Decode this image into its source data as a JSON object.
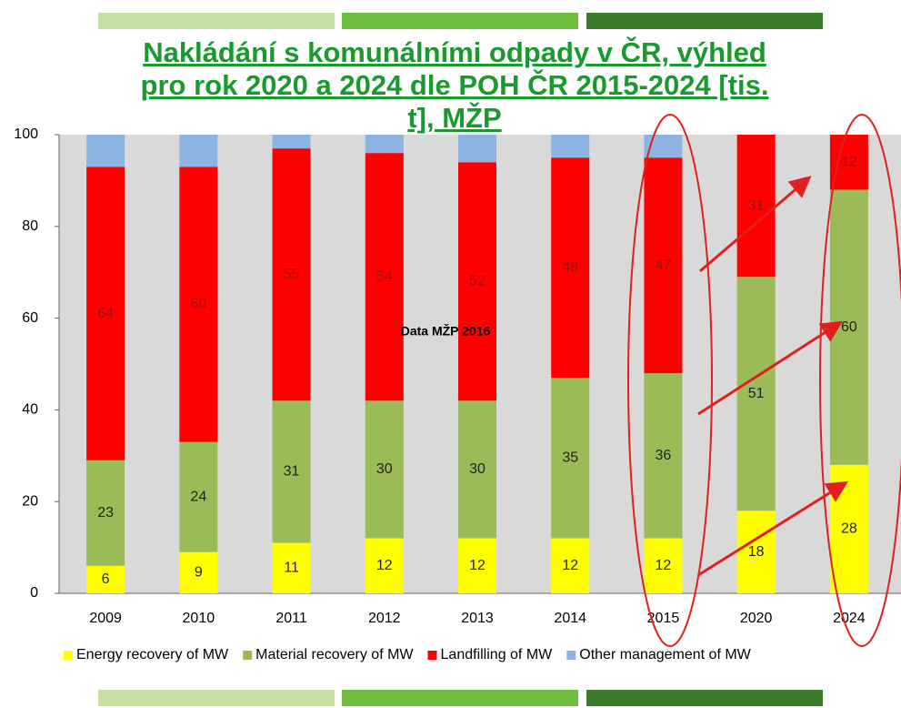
{
  "chart_data": {
    "type": "stacked_bar",
    "title": "Nakládání s komunálními odpady v ČR, výhled pro rok 2020 a 2024 dle POH ČR 2015-2024 [tis. t], MŽP",
    "annotation": "Data MŽP 2016",
    "categories": [
      "2009",
      "2010",
      "2011",
      "2012",
      "2013",
      "2014",
      "2015",
      "2020",
      "2024"
    ],
    "series": [
      {
        "name": "Energy recovery of MW",
        "color": "#ffff00",
        "show_labels": true,
        "label_color": "#222222",
        "values": [
          6,
          9,
          11,
          12,
          12,
          12,
          12,
          18,
          28
        ]
      },
      {
        "name": "Material recovery of MW",
        "color": "#9bbb59",
        "show_labels": true,
        "label_color": "#222222",
        "values": [
          23,
          24,
          31,
          30,
          30,
          35,
          36,
          51,
          60
        ]
      },
      {
        "name": "Landfilling of MW",
        "color": "#ff0000",
        "show_labels": true,
        "label_color": "#9a1010",
        "values": [
          64,
          60,
          55,
          54,
          52,
          48,
          47,
          31,
          12
        ]
      },
      {
        "name": "Other management of MW",
        "color": "#8db4e2",
        "show_labels": false,
        "label_color": "#222222",
        "values": [
          7,
          7,
          3,
          4,
          6,
          5,
          5,
          0,
          0
        ]
      }
    ],
    "ylim": [
      0,
      100
    ],
    "yticks": [
      0,
      20,
      40,
      60,
      80,
      100
    ],
    "grid": false,
    "legend": "bottom"
  }
}
